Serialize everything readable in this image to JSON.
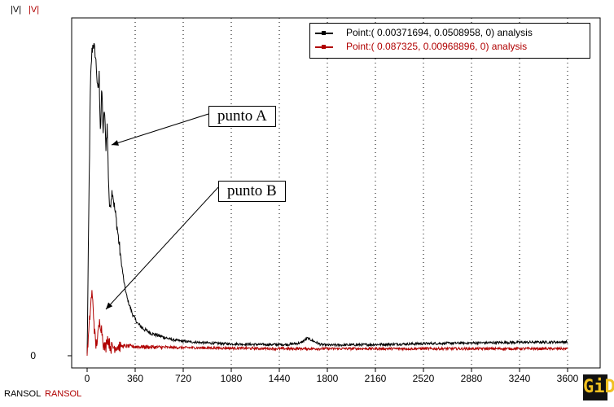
{
  "y_labels": [
    {
      "text": "|V|",
      "color": "#000000"
    },
    {
      "text": "|V|",
      "color": "#b00000"
    }
  ],
  "x_labels": [
    {
      "text": "RANSOL",
      "color": "#000000"
    },
    {
      "text": "RANSOL",
      "color": "#b00000"
    }
  ],
  "legend": {
    "entries": [
      {
        "label": "Point:( 0.00371694, 0.0508958, 0) analysis",
        "color": "#000000"
      },
      {
        "label": "Point:( 0.087325, 0.00968896, 0) analysis",
        "color": "#b00000"
      }
    ]
  },
  "annotations": [
    {
      "label": "punto A"
    },
    {
      "label": "punto B"
    }
  ],
  "logo": {
    "text": "GiD"
  },
  "chart_data": {
    "type": "line",
    "x_ticks": [
      0,
      360,
      720,
      1080,
      1440,
      1800,
      2160,
      2520,
      2880,
      3240,
      3600
    ],
    "y_ticks": [
      0
    ],
    "xlim": [
      0,
      3600
    ],
    "ylim": [
      0,
      1.0
    ],
    "grid_x": true,
    "legend_position": "top-right",
    "series": [
      {
        "name": "Point:( 0.00371694, 0.0508958, 0) analysis",
        "color": "#000000",
        "points": [
          [
            0,
            0
          ],
          [
            15,
            0.55
          ],
          [
            25,
            0.85
          ],
          [
            35,
            0.95
          ],
          [
            45,
            0.98
          ],
          [
            60,
            0.95
          ],
          [
            70,
            0.9
          ],
          [
            80,
            0.82
          ],
          [
            90,
            0.88
          ],
          [
            100,
            0.7
          ],
          [
            110,
            0.84
          ],
          [
            120,
            0.7
          ],
          [
            130,
            0.78
          ],
          [
            140,
            0.65
          ],
          [
            150,
            0.72
          ],
          [
            160,
            0.55
          ],
          [
            170,
            0.45
          ],
          [
            180,
            0.5
          ],
          [
            190,
            0.52
          ],
          [
            200,
            0.48
          ],
          [
            220,
            0.42
          ],
          [
            240,
            0.35
          ],
          [
            260,
            0.28
          ],
          [
            280,
            0.22
          ],
          [
            300,
            0.18
          ],
          [
            340,
            0.13
          ],
          [
            380,
            0.1
          ],
          [
            420,
            0.085
          ],
          [
            480,
            0.07
          ],
          [
            560,
            0.06
          ],
          [
            640,
            0.05
          ],
          [
            720,
            0.045
          ],
          [
            900,
            0.04
          ],
          [
            1080,
            0.037
          ],
          [
            1300,
            0.035
          ],
          [
            1500,
            0.035
          ],
          [
            1600,
            0.04
          ],
          [
            1650,
            0.055
          ],
          [
            1700,
            0.045
          ],
          [
            1750,
            0.035
          ],
          [
            1800,
            0.033
          ],
          [
            2160,
            0.035
          ],
          [
            2520,
            0.038
          ],
          [
            2880,
            0.04
          ],
          [
            3240,
            0.042
          ],
          [
            3600,
            0.043
          ]
        ]
      },
      {
        "name": "Point:( 0.087325, 0.00968896, 0) analysis",
        "color": "#b00000",
        "points": [
          [
            0,
            0
          ],
          [
            20,
            0.12
          ],
          [
            35,
            0.2
          ],
          [
            45,
            0.15
          ],
          [
            55,
            0.08
          ],
          [
            65,
            0.03
          ],
          [
            80,
            0.06
          ],
          [
            95,
            0.11
          ],
          [
            110,
            0.08
          ],
          [
            125,
            0.03
          ],
          [
            140,
            0.025
          ],
          [
            150,
            0.06
          ],
          [
            165,
            0.04
          ],
          [
            180,
            0.025
          ],
          [
            220,
            0.03
          ],
          [
            300,
            0.03
          ],
          [
            400,
            0.028
          ],
          [
            600,
            0.026
          ],
          [
            800,
            0.025
          ],
          [
            1000,
            0.024
          ],
          [
            1440,
            0.022
          ],
          [
            1800,
            0.022
          ],
          [
            2160,
            0.022
          ],
          [
            2520,
            0.022
          ],
          [
            2880,
            0.022
          ],
          [
            3240,
            0.022
          ],
          [
            3600,
            0.022
          ]
        ]
      }
    ]
  }
}
